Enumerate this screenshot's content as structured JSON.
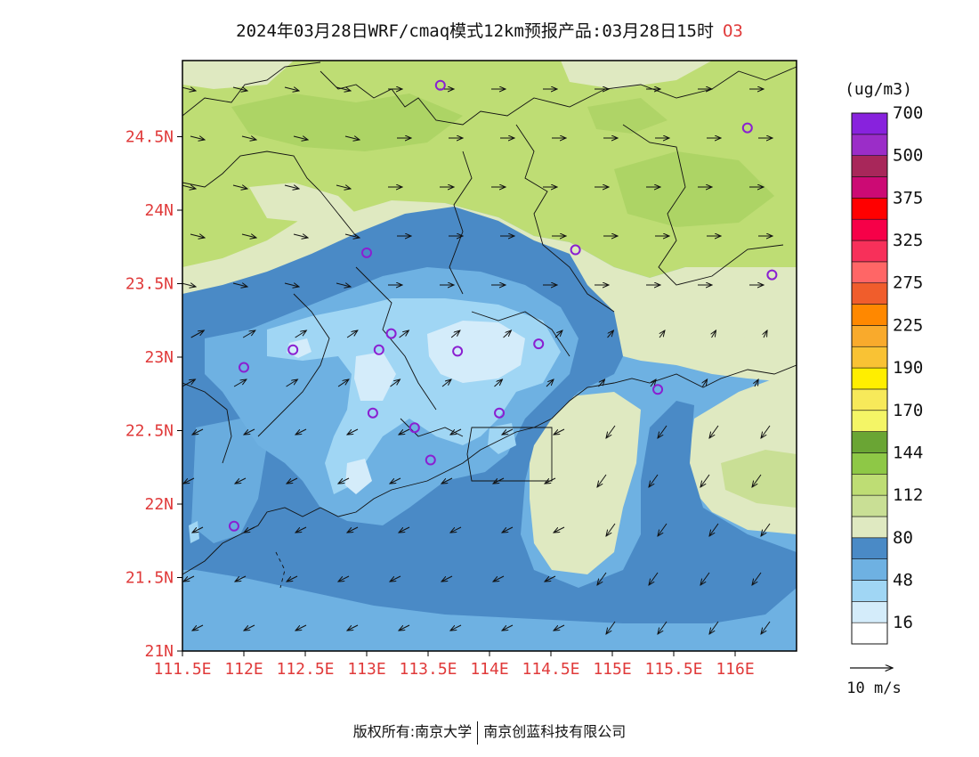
{
  "title": {
    "text": "2024年03月28日WRF/cmaq模式12km预报产品:03月28日15时",
    "species": "O3"
  },
  "axes": {
    "lon_labels": [
      "111.5E",
      "112E",
      "112.5E",
      "113E",
      "113.5E",
      "114E",
      "114.5E",
      "115E",
      "115.5E",
      "116E"
    ],
    "lat_labels": [
      "21N",
      "21.5N",
      "22N",
      "22.5N",
      "23N",
      "23.5N",
      "24N",
      "24.5N"
    ],
    "label_color": "#e03a3a"
  },
  "colorbar": {
    "unit": "(ug/m3)",
    "labels": [
      "16",
      "48",
      "80",
      "112",
      "144",
      "170",
      "190",
      "225",
      "275",
      "325",
      "375",
      "500",
      "700"
    ],
    "colors": [
      "#ffffff",
      "#d4ecfa",
      "#a0d6f4",
      "#6eb1e2",
      "#4a8ac6",
      "#dfe9c1",
      "#c9df95",
      "#bedd74",
      "#8ec846",
      "#6aa534",
      "#f4f566",
      "#f7e95a",
      "#ffee00",
      "#f9c234",
      "#f9aa2c",
      "#ff8800",
      "#f05d2c",
      "#ff6666",
      "#f7305a",
      "#f60048",
      "#ff0000",
      "#cc0a74",
      "#a8275a",
      "#9b2dc8",
      "#8822dd"
    ]
  },
  "vector_legend": {
    "label": "10 m/s"
  },
  "stations": [
    {
      "lon": 113.6,
      "lat": 24.85
    },
    {
      "lon": 116.1,
      "lat": 24.56
    },
    {
      "lon": 113.0,
      "lat": 23.71
    },
    {
      "lon": 114.7,
      "lat": 23.73
    },
    {
      "lon": 116.3,
      "lat": 23.56
    },
    {
      "lon": 112.0,
      "lat": 22.93
    },
    {
      "lon": 112.4,
      "lat": 23.05
    },
    {
      "lon": 113.1,
      "lat": 23.05
    },
    {
      "lon": 113.2,
      "lat": 23.16
    },
    {
      "lon": 113.74,
      "lat": 23.04
    },
    {
      "lon": 114.4,
      "lat": 23.09
    },
    {
      "lon": 115.37,
      "lat": 22.78
    },
    {
      "lon": 113.05,
      "lat": 22.62
    },
    {
      "lon": 113.39,
      "lat": 22.52
    },
    {
      "lon": 114.08,
      "lat": 22.62
    },
    {
      "lon": 113.52,
      "lat": 22.3
    },
    {
      "lon": 111.92,
      "lat": 21.85
    }
  ],
  "footer": {
    "left": "版权所有:南京大学",
    "right": "南京创蓝科技有限公司"
  }
}
